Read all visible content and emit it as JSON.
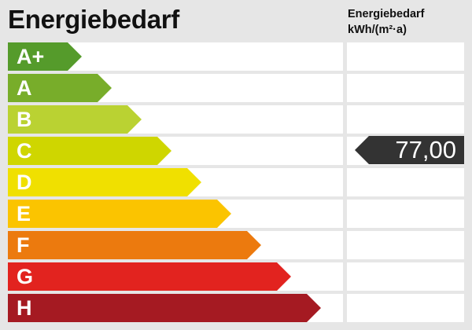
{
  "chart_data": {
    "type": "bar",
    "title": "Energiebedarf",
    "unit_label_line1": "Energiebedarf",
    "unit_label_line2": "kWh/(m²·a)",
    "categories": [
      "A+",
      "A",
      "B",
      "C",
      "D",
      "E",
      "F",
      "G",
      "H"
    ],
    "colors": [
      "#559b2b",
      "#78ad2a",
      "#bad232",
      "#cfd600",
      "#f0e000",
      "#fbc400",
      "#ec7a0e",
      "#e2231f",
      "#a51a22"
    ],
    "value": "77,00",
    "value_class": "C",
    "marker_color": "#333333"
  }
}
